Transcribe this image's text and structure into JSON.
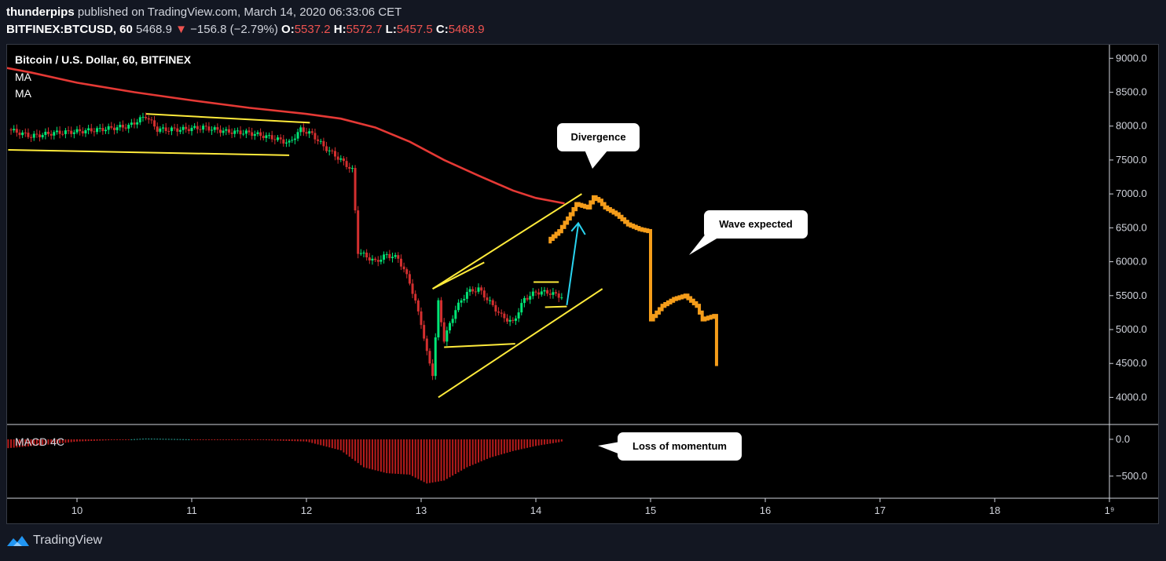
{
  "header": {
    "author": "thunderpips",
    "published_text": "published on TradingView.com, March 14, 2020 06:33:06 CET",
    "symbol": "BITFINEX:BTCUSD, 60",
    "last": "5468.9",
    "change": "−156.8 (−2.79%)",
    "o_label": "O:",
    "o": "5537.2",
    "h_label": "H:",
    "h": "5572.7",
    "l_label": "L:",
    "l": "5457.5",
    "c_label": "C:",
    "c": "5468.9"
  },
  "legend": {
    "title": "Bitcoin / U.S. Dollar, 60, BITFINEX",
    "ma1": "MA",
    "ma2": "MA",
    "macd": "MACD 4C"
  },
  "annotations": {
    "divergence": "Divergence",
    "wave": "Wave expected",
    "momentum": "Loss of momentum"
  },
  "footer": {
    "brand": "TradingView"
  },
  "colors": {
    "up": "#26a69a",
    "up_bright": "#00e676",
    "down": "#ef5350",
    "down_dark": "#d32f2f",
    "ma": "#e53935",
    "trend": "#ffeb3b",
    "projection": "#f59d1a",
    "arrow": "#29d4f0",
    "background": "#000000",
    "macd_neg": "#b71c1c"
  },
  "chart_data": {
    "type": "candlestick",
    "x_axis": {
      "ticks": [
        "10",
        "11",
        "12",
        "13",
        "14",
        "15",
        "16",
        "17",
        "18",
        "1⁹"
      ],
      "tick_values": [
        10,
        11,
        12,
        13,
        14,
        15,
        16,
        17,
        18,
        19
      ]
    },
    "y_axis": {
      "ticks": [
        "9000.0",
        "8500.0",
        "8000.0",
        "7500.0",
        "7000.0",
        "6500.0",
        "6000.0",
        "5500.0",
        "5000.0",
        "4500.0",
        "4000.0"
      ],
      "tick_values": [
        9000,
        8500,
        8000,
        7500,
        7000,
        6500,
        6000,
        5500,
        5000,
        4500,
        4000
      ],
      "range": [
        3600,
        9200
      ]
    },
    "macd_axis": {
      "ticks": [
        "0.0",
        "−500.0"
      ],
      "tick_values": [
        0,
        -500
      ],
      "range": [
        -800,
        180
      ]
    },
    "price_path": [
      [
        9.4,
        7950
      ],
      [
        9.6,
        7850
      ],
      [
        9.8,
        7900
      ],
      [
        10.0,
        7920
      ],
      [
        10.2,
        7950
      ],
      [
        10.45,
        8000
      ],
      [
        10.6,
        8150
      ],
      [
        10.7,
        7950
      ],
      [
        10.9,
        7950
      ],
      [
        11.1,
        7980
      ],
      [
        11.3,
        7920
      ],
      [
        11.5,
        7900
      ],
      [
        11.7,
        7830
      ],
      [
        11.85,
        7750
      ],
      [
        11.95,
        7950
      ],
      [
        12.05,
        7880
      ],
      [
        12.15,
        7700
      ],
      [
        12.3,
        7500
      ],
      [
        12.4,
        7350
      ],
      [
        12.45,
        6150
      ],
      [
        12.6,
        6000
      ],
      [
        12.7,
        6100
      ],
      [
        12.8,
        6050
      ],
      [
        12.9,
        5700
      ],
      [
        13.0,
        5100
      ],
      [
        13.05,
        4650
      ],
      [
        13.1,
        4350
      ],
      [
        13.15,
        5400
      ],
      [
        13.2,
        4850
      ],
      [
        13.3,
        5300
      ],
      [
        13.4,
        5550
      ],
      [
        13.5,
        5600
      ],
      [
        13.6,
        5400
      ],
      [
        13.7,
        5200
      ],
      [
        13.8,
        5100
      ],
      [
        13.9,
        5450
      ],
      [
        14.0,
        5550
      ],
      [
        14.1,
        5550
      ],
      [
        14.2,
        5500
      ],
      [
        14.25,
        5468.9
      ]
    ],
    "ma_path": [
      [
        9.35,
        8870
      ],
      [
        9.6,
        8790
      ],
      [
        10.0,
        8640
      ],
      [
        10.5,
        8500
      ],
      [
        11.0,
        8380
      ],
      [
        11.5,
        8270
      ],
      [
        12.0,
        8180
      ],
      [
        12.3,
        8110
      ],
      [
        12.6,
        7980
      ],
      [
        12.9,
        7770
      ],
      [
        13.2,
        7500
      ],
      [
        13.5,
        7270
      ],
      [
        13.8,
        7050
      ],
      [
        14.0,
        6940
      ],
      [
        14.25,
        6860
      ]
    ],
    "projection_path": [
      [
        14.1,
        6300
      ],
      [
        14.2,
        6450
      ],
      [
        14.3,
        6700
      ],
      [
        14.35,
        6850
      ],
      [
        14.45,
        6800
      ],
      [
        14.5,
        6950
      ],
      [
        14.55,
        6900
      ],
      [
        14.6,
        6800
      ],
      [
        14.7,
        6700
      ],
      [
        14.8,
        6550
      ],
      [
        14.9,
        6480
      ],
      [
        14.98,
        6450
      ],
      [
        15.0,
        5150
      ],
      [
        15.1,
        5350
      ],
      [
        15.2,
        5450
      ],
      [
        15.3,
        5500
      ],
      [
        15.4,
        5350
      ],
      [
        15.45,
        5150
      ],
      [
        15.55,
        5200
      ],
      [
        15.58,
        4350
      ],
      [
        15.6,
        4550
      ]
    ],
    "macd_histogram": [
      [
        9.4,
        -120
      ],
      [
        9.7,
        -80
      ],
      [
        10.0,
        -30
      ],
      [
        10.4,
        -5
      ],
      [
        10.6,
        10
      ],
      [
        11.0,
        0
      ],
      [
        11.5,
        -5
      ],
      [
        12.0,
        -30
      ],
      [
        12.3,
        -150
      ],
      [
        12.5,
        -380
      ],
      [
        12.7,
        -460
      ],
      [
        12.9,
        -480
      ],
      [
        13.05,
        -600
      ],
      [
        13.2,
        -560
      ],
      [
        13.4,
        -380
      ],
      [
        13.6,
        -250
      ],
      [
        13.8,
        -160
      ],
      [
        14.0,
        -90
      ],
      [
        14.2,
        -40
      ],
      [
        14.25,
        -20
      ]
    ]
  }
}
